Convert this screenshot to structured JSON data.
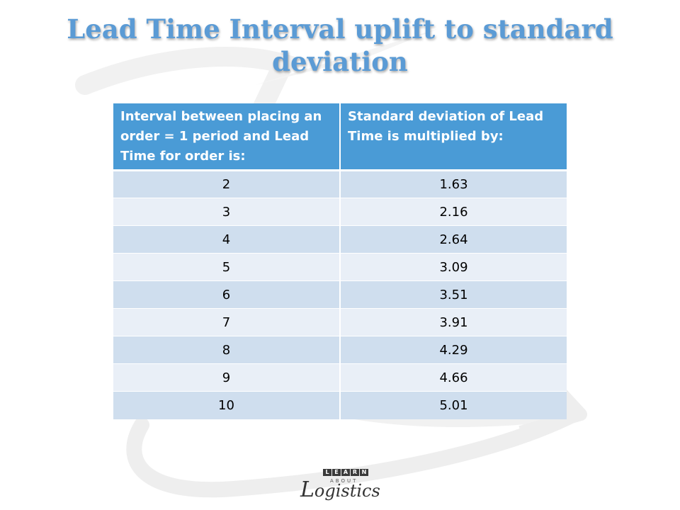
{
  "title": "Lead Time Interval uplift to standard deviation",
  "table": {
    "headers": [
      "Interval between placing an order = 1 period and Lead Time for order is:",
      "Standard deviation of Lead Time is multiplied by:"
    ],
    "rows": [
      [
        "2",
        "1.63"
      ],
      [
        "3",
        "2.16"
      ],
      [
        "4",
        "2.64"
      ],
      [
        "5",
        "3.09"
      ],
      [
        "6",
        "3.51"
      ],
      [
        "7",
        "3.91"
      ],
      [
        "8",
        "4.29"
      ],
      [
        "9",
        "4.66"
      ],
      [
        "10",
        "5.01"
      ]
    ]
  },
  "logo": {
    "letters": [
      "L",
      "E",
      "A",
      "R",
      "N"
    ],
    "about": "ABOUT",
    "initial": "L",
    "rest": "ogistics"
  },
  "colors": {
    "title": "#5b9bd5",
    "header_bg": "#4a9bd6",
    "row_odd": "#cfdeee",
    "row_even": "#e9eff7"
  }
}
